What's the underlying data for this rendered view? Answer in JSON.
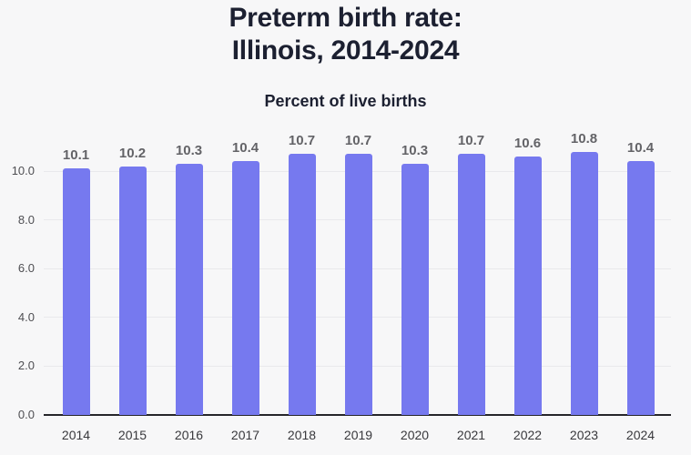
{
  "header": {
    "title": "Preterm birth rate:\nIllinois, 2014-2024",
    "subtitle": "Percent of live births"
  },
  "colors": {
    "background": "#f7f7f8",
    "bar": "#7679ef",
    "gridline": "#e9e9ec",
    "axis_line": "#26262a",
    "title_text": "#1c2031",
    "value_label_text": "#636367",
    "tick_label_text": "#4e4e52"
  },
  "chart_data": {
    "type": "bar",
    "title": "Preterm birth rate: Illinois, 2014-2024",
    "subtitle": "Percent of live births",
    "categories": [
      "2014",
      "2015",
      "2016",
      "2017",
      "2018",
      "2019",
      "2020",
      "2021",
      "2022",
      "2023",
      "2024"
    ],
    "values": [
      10.1,
      10.2,
      10.3,
      10.4,
      10.7,
      10.7,
      10.3,
      10.7,
      10.6,
      10.8,
      10.4
    ],
    "xlabel": "",
    "ylabel": "Percent of live births",
    "ylim": [
      0,
      11
    ],
    "yticks": [
      0.0,
      2.0,
      4.0,
      6.0,
      8.0,
      10.0
    ],
    "value_label_decimals": 1,
    "grid": true,
    "legend": false,
    "bar_labels_shown": true
  }
}
